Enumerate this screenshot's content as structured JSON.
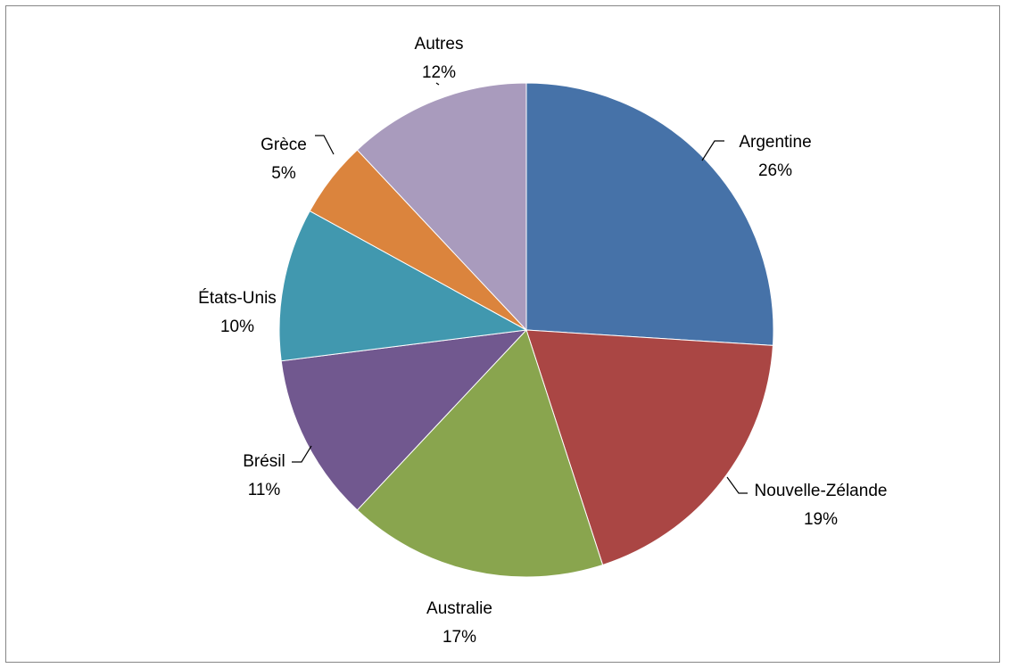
{
  "chart_data": {
    "type": "pie",
    "title": "",
    "slices": [
      {
        "label": "Argentine",
        "value": 26,
        "value_label": "26%",
        "color": "#4672A8"
      },
      {
        "label": "Nouvelle-Zélande",
        "value": 19,
        "value_label": "19%",
        "color": "#AA4644"
      },
      {
        "label": "Australie",
        "value": 17,
        "value_label": "17%",
        "color": "#89A54E"
      },
      {
        "label": "Brésil",
        "value": 11,
        "value_label": "11%",
        "color": "#71588F"
      },
      {
        "label": "États-Unis",
        "value": 10,
        "value_label": "10%",
        "color": "#4198AF"
      },
      {
        "label": "Grèce",
        "value": 5,
        "value_label": "5%",
        "color": "#DB843D"
      },
      {
        "label": "Autres",
        "value": 12,
        "value_label": "12%",
        "color": "#A99BBD"
      }
    ],
    "start_angle": "12 o'clock",
    "direction": "clockwise",
    "legend": "none",
    "data_labels": "outside with leader lines"
  }
}
